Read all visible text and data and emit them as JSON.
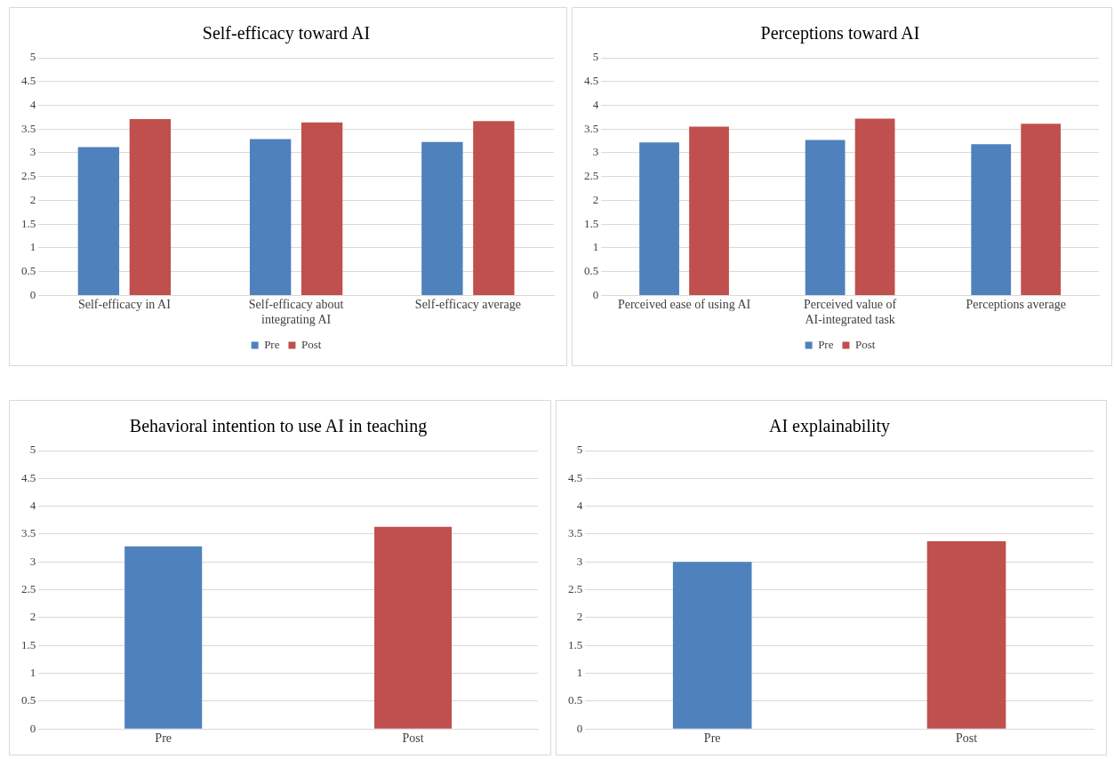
{
  "chart_data": [
    {
      "type": "bar",
      "title": "Self-efficacy toward AI",
      "categories": [
        "Self-efficacy in AI",
        "Self-efficacy about integrating AI",
        "Self-efficacy average"
      ],
      "series": [
        {
          "name": "Pre",
          "color": "#4f81bd",
          "values": [
            3.12,
            3.29,
            3.23
          ]
        },
        {
          "name": "Post",
          "color": "#c0504d",
          "values": [
            3.71,
            3.64,
            3.67
          ]
        }
      ],
      "ylim": [
        0,
        5
      ],
      "yticks": [
        0,
        0.5,
        1,
        1.5,
        2,
        2.5,
        3,
        3.5,
        4,
        4.5,
        5
      ],
      "grid": "y",
      "legend": "bottom"
    },
    {
      "type": "bar",
      "title": "Perceptions toward AI",
      "categories": [
        "Perceived ease of using AI",
        "Perceived value of AI-integrated task",
        "Perceptions average"
      ],
      "series": [
        {
          "name": "Pre",
          "color": "#4f81bd",
          "values": [
            3.22,
            3.27,
            3.18
          ]
        },
        {
          "name": "Post",
          "color": "#c0504d",
          "values": [
            3.55,
            3.72,
            3.61
          ]
        }
      ],
      "ylim": [
        0,
        5
      ],
      "yticks": [
        0,
        0.5,
        1,
        1.5,
        2,
        2.5,
        3,
        3.5,
        4,
        4.5,
        5
      ],
      "grid": "y",
      "legend": "bottom"
    },
    {
      "type": "bar",
      "title": "Behavioral intention to use AI in teaching",
      "categories": [
        "Pre",
        "Post"
      ],
      "values": [
        3.28,
        3.63
      ],
      "colors": [
        "#4f81bd",
        "#c0504d"
      ],
      "ylim": [
        0,
        5
      ],
      "yticks": [
        0,
        0.5,
        1,
        1.5,
        2,
        2.5,
        3,
        3.5,
        4,
        4.5,
        5
      ],
      "grid": "y"
    },
    {
      "type": "bar",
      "title": "AI explainability",
      "categories": [
        "Pre",
        "Post"
      ],
      "values": [
        3.0,
        3.37
      ],
      "colors": [
        "#4f81bd",
        "#c0504d"
      ],
      "ylim": [
        0,
        5
      ],
      "yticks": [
        0,
        0.5,
        1,
        1.5,
        2,
        2.5,
        3,
        3.5,
        4,
        4.5,
        5
      ],
      "grid": "y"
    }
  ]
}
